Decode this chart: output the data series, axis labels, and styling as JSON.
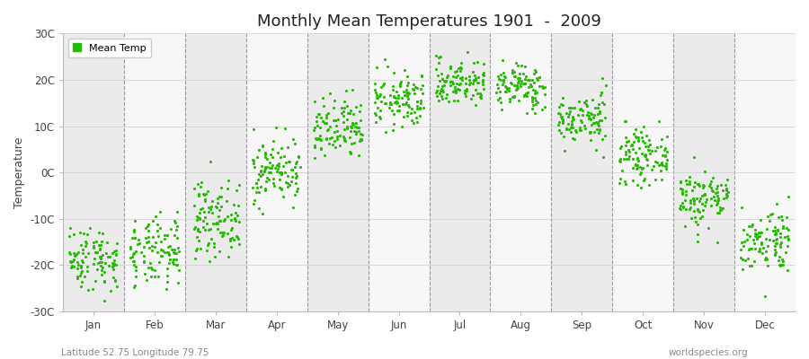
{
  "title": "Monthly Mean Temperatures 1901  -  2009",
  "ylabel": "Temperature",
  "subtitle_left": "Latitude 52.75 Longitude 79.75",
  "subtitle_right": "worldspecies.org",
  "legend_label": "Mean Temp",
  "marker_color": "#22bb00",
  "background_color": "#ffffff",
  "band_colors": [
    "#ebebeb",
    "#f7f7f7"
  ],
  "ylim": [
    -30,
    30
  ],
  "yticks": [
    -30,
    -20,
    -10,
    0,
    10,
    20,
    30
  ],
  "ytick_labels": [
    "-30C",
    "-20C",
    "-10C",
    "0C",
    "10C",
    "20C",
    "30C"
  ],
  "months": [
    "Jan",
    "Feb",
    "Mar",
    "Apr",
    "May",
    "Jun",
    "Jul",
    "Aug",
    "Sep",
    "Oct",
    "Nov",
    "Dec"
  ],
  "mean_temps": [
    -18.5,
    -17.5,
    -10.0,
    0.5,
    9.0,
    15.5,
    19.5,
    18.5,
    11.5,
    3.5,
    -5.5,
    -14.5
  ],
  "std_temps": [
    3.5,
    3.8,
    4.0,
    3.5,
    3.5,
    3.0,
    2.5,
    2.5,
    2.8,
    2.8,
    3.2,
    3.5
  ],
  "n_years": 109,
  "seed": 42
}
